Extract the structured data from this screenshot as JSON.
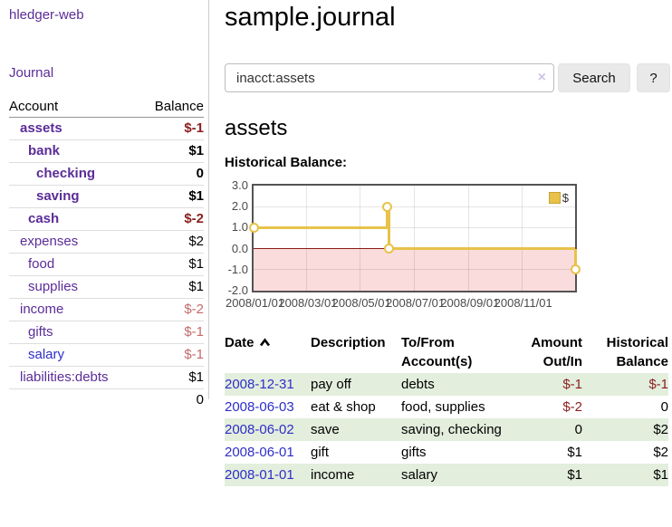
{
  "sidebar": {
    "brand": "hledger-web",
    "nav": {
      "journal": "Journal"
    },
    "accounts": {
      "col_account": "Account",
      "col_balance": "Balance",
      "rows": [
        {
          "name": "assets",
          "balance": "$-1"
        },
        {
          "name": "bank",
          "balance": "$1"
        },
        {
          "name": "checking",
          "balance": "0"
        },
        {
          "name": "saving",
          "balance": "$1"
        },
        {
          "name": "cash",
          "balance": "$-2"
        },
        {
          "name": "expenses",
          "balance": "$2"
        },
        {
          "name": "food",
          "balance": "$1"
        },
        {
          "name": "supplies",
          "balance": "$1"
        },
        {
          "name": "income",
          "balance": "$-2"
        },
        {
          "name": "gifts",
          "balance": "$-1"
        },
        {
          "name": "salary",
          "balance": "$-1"
        },
        {
          "name": "liabilities:debts",
          "balance": "$1"
        }
      ],
      "total": "0"
    }
  },
  "header": {
    "title": "sample.journal"
  },
  "search": {
    "value": "inacct:assets",
    "clear_icon": "×",
    "search_button": "Search",
    "help_button": "?"
  },
  "account_view": {
    "title": "assets",
    "chart_title": "Historical Balance:"
  },
  "chart_data": {
    "type": "line",
    "step": true,
    "title": "Historical Balance",
    "ylim": [
      -2,
      3
    ],
    "yticks": [
      "3.0",
      "2.0",
      "1.0",
      "0.0",
      "-1.0",
      "-2.0"
    ],
    "xticks": [
      {
        "label": "2008/01/01",
        "date": "2008-01-01"
      },
      {
        "label": "2008/03/01",
        "date": "2008-03-01"
      },
      {
        "label": "2008/05/01",
        "date": "2008-05-01"
      },
      {
        "label": "2008/07/01",
        "date": "2008-07-01"
      },
      {
        "label": "2008/09/01",
        "date": "2008-09-01"
      },
      {
        "label": "2008/11/01",
        "date": "2008-11-01"
      }
    ],
    "xrange": [
      "2008-01-01",
      "2008-12-31"
    ],
    "series": [
      {
        "name": "$",
        "color": "#e8c24a",
        "points": [
          {
            "date": "2008-01-01",
            "value": 1
          },
          {
            "date": "2008-06-01",
            "value": 2
          },
          {
            "date": "2008-06-03",
            "value": 0
          },
          {
            "date": "2008-12-31",
            "value": -1
          }
        ]
      }
    ],
    "legend": {
      "label": "$",
      "position": "top-right"
    },
    "negative_region_color": "#fbdcdc",
    "zero_line_color": "#8b1a1a",
    "grid": true
  },
  "register": {
    "columns": {
      "date": "Date",
      "description": "Description",
      "accounts": "To/From Account(s)",
      "amount": "Amount Out/In",
      "balance": "Historical Balance"
    },
    "rows": [
      {
        "date": "2008-12-31",
        "description": "pay off",
        "accounts": "debts",
        "amount": "$-1",
        "balance": "$-1"
      },
      {
        "date": "2008-06-03",
        "description": "eat & shop",
        "accounts": "food, supplies",
        "amount": "$-2",
        "balance": "0"
      },
      {
        "date": "2008-06-02",
        "description": "save",
        "accounts": "saving, checking",
        "amount": "0",
        "balance": "$2"
      },
      {
        "date": "2008-06-01",
        "description": "gift",
        "accounts": "gifts",
        "amount": "$1",
        "balance": "$2"
      },
      {
        "date": "2008-01-01",
        "description": "income",
        "accounts": "salary",
        "amount": "$1",
        "balance": "$1"
      }
    ]
  }
}
